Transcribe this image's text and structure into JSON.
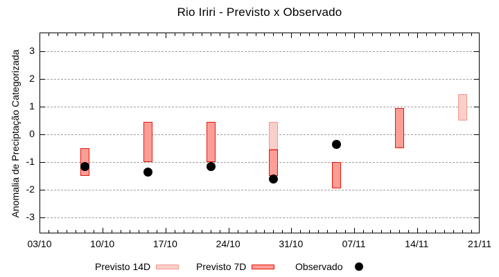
{
  "window": {
    "title": "Rio Iriri - Previsto x Observado"
  },
  "chart_data": {
    "type": "bar",
    "subtype": "range-bars-with-scatter-overlay",
    "title": "Rio Iriri - Previsto x Observado",
    "xlabel": "",
    "ylabel": "Anomalia de Preciptação Categorizada",
    "ylim": [
      -3.6,
      3.65
    ],
    "yticks": [
      3,
      2,
      1,
      0,
      -1,
      -2,
      -3
    ],
    "grid": "horizontal dashed gray at integer y values",
    "legend_position": "bottom-center",
    "x_axis": {
      "total_days": 49,
      "major_tick_days": [
        0,
        7,
        14,
        21,
        28,
        35,
        42,
        49
      ],
      "tick_labels": [
        "03/10",
        "10/10",
        "17/10",
        "24/10",
        "31/10",
        "07/11",
        "14/11",
        "21/11"
      ],
      "minor_tick_every_days": 1
    },
    "colors": {
      "previsto_14d_fill": "#fbcfc9",
      "previsto_14d_stroke": "#f0978c",
      "previsto_7d_fill": "#fc9e96",
      "previsto_7d_stroke": "#e41409",
      "observado": "#000000",
      "gridline": "#9c9c9c"
    },
    "series": [
      {
        "id": "previsto-14d",
        "name": "Previsto 14D",
        "type": "range-bar",
        "fill": "#fbcfc9",
        "stroke": "#f0978c",
        "points": [
          {
            "day": 26,
            "date": "29/10",
            "from": 0.45,
            "to": -0.55
          },
          {
            "day": 47,
            "date": "19/11",
            "from": 1.45,
            "to": 0.5
          }
        ]
      },
      {
        "id": "previsto-7d",
        "name": "Previsto 7D",
        "type": "range-bar",
        "fill": "#fc9e96",
        "stroke": "#e41409",
        "points": [
          {
            "day": 5,
            "date": "08/10",
            "from": -0.5,
            "to": -1.5
          },
          {
            "day": 12,
            "date": "15/10",
            "from": 0.45,
            "to": -1.0
          },
          {
            "day": 19,
            "date": "22/10",
            "from": 0.45,
            "to": -1.0
          },
          {
            "day": 26,
            "date": "29/10",
            "from": -0.55,
            "to": -1.5
          },
          {
            "day": 33,
            "date": "05/11",
            "from": -1.0,
            "to": -1.95
          },
          {
            "day": 40,
            "date": "12/11",
            "from": 0.95,
            "to": -0.5
          }
        ]
      },
      {
        "id": "observado",
        "name": "Observado",
        "type": "scatter",
        "fill": "#000000",
        "points": [
          {
            "day": 5,
            "date": "08/10",
            "value": -1.15
          },
          {
            "day": 12,
            "date": "15/10",
            "value": -1.35
          },
          {
            "day": 19,
            "date": "22/10",
            "value": -1.15
          },
          {
            "day": 26,
            "date": "29/10",
            "value": -1.6
          },
          {
            "day": 33,
            "date": "05/11",
            "value": -0.35
          }
        ]
      }
    ]
  }
}
